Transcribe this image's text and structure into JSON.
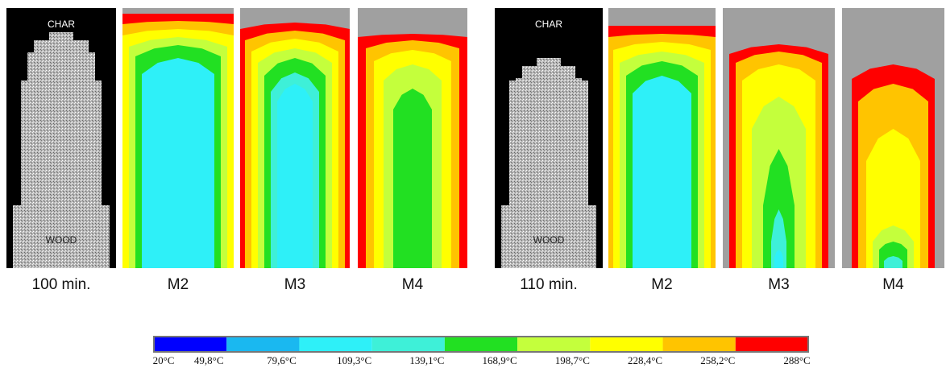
{
  "groups": [
    {
      "photo": {
        "top_label": "CHAR",
        "bottom_label": "WOOD",
        "caption": "100 min."
      },
      "models": [
        "M2",
        "M3",
        "M4"
      ]
    },
    {
      "photo": {
        "top_label": "CHAR",
        "bottom_label": "WOOD",
        "caption": "110 min."
      },
      "models": [
        "M2",
        "M3",
        "M4"
      ]
    }
  ],
  "colorbar": {
    "labels": [
      "20°C",
      "49,8°C",
      "79,6°C",
      "109,3°C",
      "139,1°C",
      "168,9°C",
      "198,7°C",
      "228,4°C",
      "258,2°C",
      "288°C"
    ],
    "colors": [
      "#0000ff",
      "#1ab8f0",
      "#2ef0f8",
      "#3ef0d8",
      "#22e022",
      "#c4ff3c",
      "#ffff00",
      "#ffc400",
      "#ff0000"
    ]
  }
}
